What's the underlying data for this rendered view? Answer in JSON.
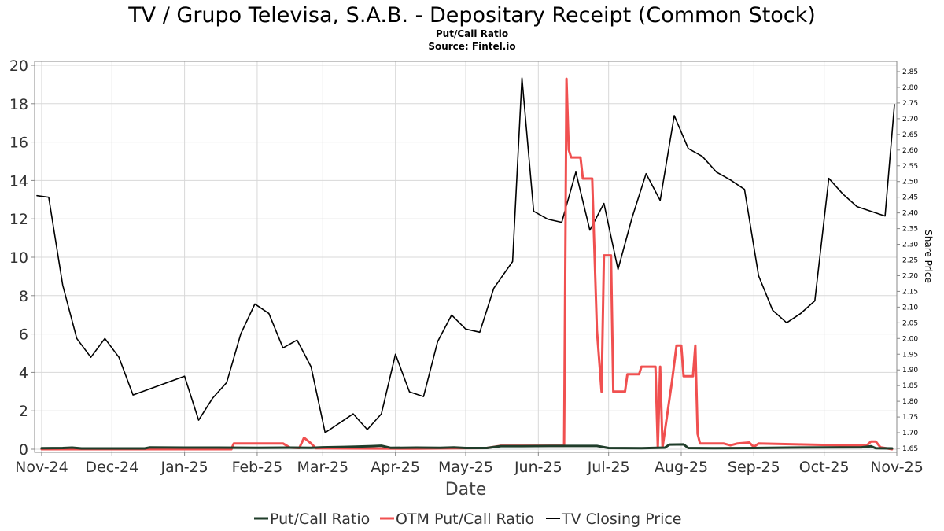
{
  "chart_data": {
    "type": "line",
    "title": "TV / Grupo Televisa, S.A.B. - Depositary Receipt (Common Stock)",
    "subtitle": "Put/Call Ratio",
    "source": "Source: Fintel.io",
    "xlabel": "Date",
    "ylabel": "",
    "ylabel_right": "Share Price",
    "grid": true,
    "legend_position": "bottom",
    "x_range": [
      "2024-10-29",
      "2025-11-01"
    ],
    "ylim": [
      0,
      20
    ],
    "ylim_right": [
      1.645,
      2.875
    ],
    "x_ticks": [
      {
        "date": "2024-11-01",
        "label": "Nov-24"
      },
      {
        "date": "2024-12-01",
        "label": "Dec-24"
      },
      {
        "date": "2025-01-01",
        "label": "Jan-25"
      },
      {
        "date": "2025-02-01",
        "label": "Feb-25"
      },
      {
        "date": "2025-03-01",
        "label": "Mar-25"
      },
      {
        "date": "2025-04-01",
        "label": "Apr-25"
      },
      {
        "date": "2025-05-01",
        "label": "May-25"
      },
      {
        "date": "2025-06-01",
        "label": "Jun-25"
      },
      {
        "date": "2025-07-01",
        "label": "Jul-25"
      },
      {
        "date": "2025-08-01",
        "label": "Aug-25"
      },
      {
        "date": "2025-09-01",
        "label": "Sep-25"
      },
      {
        "date": "2025-10-01",
        "label": "Oct-25"
      },
      {
        "date": "2025-11-01",
        "label": "Nov-25"
      }
    ],
    "y_ticks": [
      "0",
      "2",
      "4",
      "6",
      "8",
      "10",
      "12",
      "14",
      "16",
      "18",
      "20"
    ],
    "y_ticks_right": [
      "1.65",
      "1.70",
      "1.75",
      "1.80",
      "1.85",
      "1.90",
      "1.95",
      "2.00",
      "2.05",
      "2.10",
      "2.15",
      "2.20",
      "2.25",
      "2.30",
      "2.35",
      "2.40",
      "2.45",
      "2.50",
      "2.55",
      "2.60",
      "2.65",
      "2.70",
      "2.75",
      "2.80",
      "2.85"
    ],
    "series": [
      {
        "name": "Put/Call Ratio",
        "axis": "left",
        "color": "#1f3d2a",
        "points": [
          [
            "2024-11-01",
            0.05
          ],
          [
            "2024-11-10",
            0.06
          ],
          [
            "2024-11-14",
            0.08
          ],
          [
            "2024-11-18",
            0.04
          ],
          [
            "2024-12-01",
            0.04
          ],
          [
            "2024-12-15",
            0.04
          ],
          [
            "2024-12-17",
            0.09
          ],
          [
            "2025-01-01",
            0.08
          ],
          [
            "2025-01-15",
            0.08
          ],
          [
            "2025-02-01",
            0.07
          ],
          [
            "2025-02-15",
            0.08
          ],
          [
            "2025-02-24",
            0.07
          ],
          [
            "2025-03-01",
            0.1
          ],
          [
            "2025-03-10",
            0.12
          ],
          [
            "2025-03-15",
            0.13
          ],
          [
            "2025-03-22",
            0.16
          ],
          [
            "2025-03-26",
            0.18
          ],
          [
            "2025-03-30",
            0.07
          ],
          [
            "2025-04-10",
            0.08
          ],
          [
            "2025-04-20",
            0.07
          ],
          [
            "2025-04-26",
            0.09
          ],
          [
            "2025-05-01",
            0.06
          ],
          [
            "2025-05-10",
            0.06
          ],
          [
            "2025-05-16",
            0.16
          ],
          [
            "2025-05-25",
            0.16
          ],
          [
            "2025-06-06",
            0.17
          ],
          [
            "2025-06-20",
            0.17
          ],
          [
            "2025-06-26",
            0.17
          ],
          [
            "2025-07-01",
            0.06
          ],
          [
            "2025-07-15",
            0.05
          ],
          [
            "2025-07-25",
            0.08
          ],
          [
            "2025-07-27",
            0.24
          ],
          [
            "2025-08-02",
            0.25
          ],
          [
            "2025-08-04",
            0.06
          ],
          [
            "2025-08-15",
            0.05
          ],
          [
            "2025-09-01",
            0.06
          ],
          [
            "2025-09-15",
            0.08
          ],
          [
            "2025-10-01",
            0.09
          ],
          [
            "2025-10-17",
            0.1
          ],
          [
            "2025-10-21",
            0.15
          ],
          [
            "2025-10-23",
            0.05
          ],
          [
            "2025-10-30",
            0.04
          ]
        ]
      },
      {
        "name": "OTM Put/Call Ratio",
        "axis": "left",
        "color": "#f05050",
        "points": [
          [
            "2024-11-01",
            0.0
          ],
          [
            "2025-01-15",
            0.0
          ],
          [
            "2025-01-21",
            0.0
          ],
          [
            "2025-01-22",
            0.3
          ],
          [
            "2025-02-12",
            0.3
          ],
          [
            "2025-02-15",
            0.08
          ],
          [
            "2025-02-19",
            0.06
          ],
          [
            "2025-02-21",
            0.6
          ],
          [
            "2025-02-24",
            0.3
          ],
          [
            "2025-02-26",
            0.05
          ],
          [
            "2025-03-10",
            0.04
          ],
          [
            "2025-04-10",
            0.03
          ],
          [
            "2025-05-10",
            0.06
          ],
          [
            "2025-05-16",
            0.18
          ],
          [
            "2025-06-12",
            0.18
          ],
          [
            "2025-06-13",
            19.3
          ],
          [
            "2025-06-14",
            15.6
          ],
          [
            "2025-06-15",
            15.2
          ],
          [
            "2025-06-19",
            15.2
          ],
          [
            "2025-06-20",
            14.1
          ],
          [
            "2025-06-24",
            14.1
          ],
          [
            "2025-06-26",
            6.2
          ],
          [
            "2025-06-28",
            3.0
          ],
          [
            "2025-06-29",
            10.1
          ],
          [
            "2025-07-02",
            10.1
          ],
          [
            "2025-07-03",
            3.0
          ],
          [
            "2025-07-08",
            3.0
          ],
          [
            "2025-07-09",
            3.9
          ],
          [
            "2025-07-14",
            3.9
          ],
          [
            "2025-07-15",
            4.3
          ],
          [
            "2025-07-21",
            4.3
          ],
          [
            "2025-07-22",
            0.1
          ],
          [
            "2025-07-23",
            4.3
          ],
          [
            "2025-07-24",
            0.1
          ],
          [
            "2025-07-28",
            3.5
          ],
          [
            "2025-07-30",
            5.4
          ],
          [
            "2025-08-01",
            5.4
          ],
          [
            "2025-08-02",
            3.8
          ],
          [
            "2025-08-06",
            3.8
          ],
          [
            "2025-08-07",
            5.4
          ],
          [
            "2025-08-08",
            0.8
          ],
          [
            "2025-08-09",
            0.3
          ],
          [
            "2025-08-19",
            0.3
          ],
          [
            "2025-08-22",
            0.2
          ],
          [
            "2025-08-25",
            0.3
          ],
          [
            "2025-08-30",
            0.35
          ],
          [
            "2025-09-01",
            0.12
          ],
          [
            "2025-09-03",
            0.3
          ],
          [
            "2025-09-20",
            0.25
          ],
          [
            "2025-10-10",
            0.2
          ],
          [
            "2025-10-15",
            0.2
          ],
          [
            "2025-10-19",
            0.18
          ],
          [
            "2025-10-21",
            0.4
          ],
          [
            "2025-10-23",
            0.4
          ],
          [
            "2025-10-25",
            0.1
          ],
          [
            "2025-10-30",
            0.0
          ]
        ]
      },
      {
        "name": "TV Closing Price",
        "axis": "right",
        "color": "#000000",
        "points": [
          [
            "2024-10-30",
            2.455
          ],
          [
            "2024-11-04",
            2.45
          ],
          [
            "2024-11-10",
            2.17
          ],
          [
            "2024-11-16",
            2.0
          ],
          [
            "2024-11-22",
            1.94
          ],
          [
            "2024-11-28",
            2.0
          ],
          [
            "2024-12-04",
            1.94
          ],
          [
            "2024-12-10",
            1.82
          ],
          [
            "2025-01-01",
            1.88
          ],
          [
            "2025-01-07",
            1.74
          ],
          [
            "2025-01-13",
            1.81
          ],
          [
            "2025-01-19",
            1.86
          ],
          [
            "2025-01-25",
            2.015
          ],
          [
            "2025-01-31",
            2.11
          ],
          [
            "2025-02-06",
            2.08
          ],
          [
            "2025-02-12",
            1.97
          ],
          [
            "2025-02-18",
            1.995
          ],
          [
            "2025-02-24",
            1.91
          ],
          [
            "2025-03-02",
            1.7
          ],
          [
            "2025-03-14",
            1.76
          ],
          [
            "2025-03-20",
            1.71
          ],
          [
            "2025-03-26",
            1.76
          ],
          [
            "2025-04-01",
            1.95
          ],
          [
            "2025-04-07",
            1.83
          ],
          [
            "2025-04-13",
            1.815
          ],
          [
            "2025-04-19",
            1.99
          ],
          [
            "2025-04-25",
            2.075
          ],
          [
            "2025-05-01",
            2.03
          ],
          [
            "2025-05-07",
            2.02
          ],
          [
            "2025-05-13",
            2.16
          ],
          [
            "2025-05-21",
            2.245
          ],
          [
            "2025-05-25",
            2.83
          ],
          [
            "2025-05-30",
            2.405
          ],
          [
            "2025-06-05",
            2.38
          ],
          [
            "2025-06-11",
            2.37
          ],
          [
            "2025-06-17",
            2.53
          ],
          [
            "2025-06-23",
            2.345
          ],
          [
            "2025-06-29",
            2.43
          ],
          [
            "2025-07-05",
            2.22
          ],
          [
            "2025-07-11",
            2.385
          ],
          [
            "2025-07-17",
            2.525
          ],
          [
            "2025-07-23",
            2.44
          ],
          [
            "2025-07-29",
            2.71
          ],
          [
            "2025-08-04",
            2.605
          ],
          [
            "2025-08-10",
            2.58
          ],
          [
            "2025-08-16",
            2.53
          ],
          [
            "2025-08-22",
            2.505
          ],
          [
            "2025-08-28",
            2.475
          ],
          [
            "2025-09-03",
            2.2
          ],
          [
            "2025-09-09",
            2.09
          ],
          [
            "2025-09-15",
            2.05
          ],
          [
            "2025-09-21",
            2.08
          ],
          [
            "2025-09-27",
            2.12
          ],
          [
            "2025-10-03",
            2.51
          ],
          [
            "2025-10-09",
            2.46
          ],
          [
            "2025-10-15",
            2.42
          ],
          [
            "2025-10-27",
            2.39
          ],
          [
            "2025-10-31",
            2.745
          ]
        ]
      }
    ]
  },
  "legend": [
    {
      "label": "Put/Call Ratio",
      "color": "#1f3d2a"
    },
    {
      "label": "OTM Put/Call Ratio",
      "color": "#f05050"
    },
    {
      "label": "TV Closing Price",
      "color": "#000000"
    }
  ]
}
